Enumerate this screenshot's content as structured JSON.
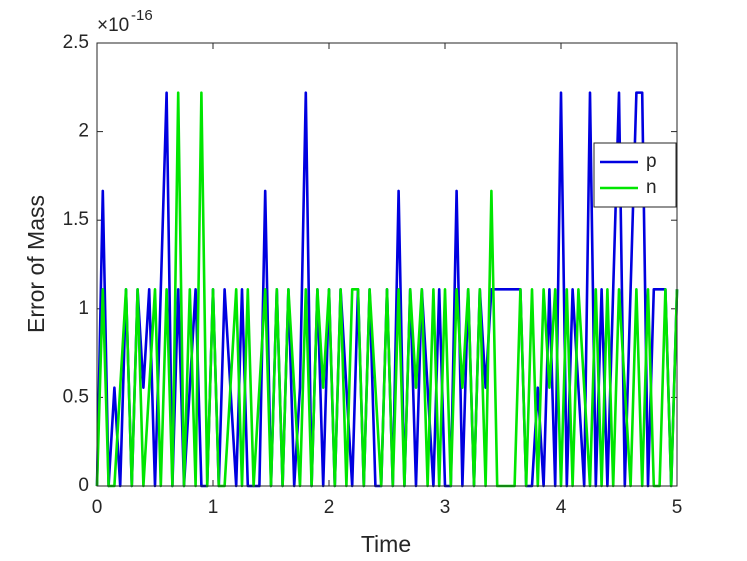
{
  "chart_data": {
    "type": "line",
    "xlabel": "Time",
    "ylabel": "Error of Mass",
    "y_multiplier": "×10",
    "y_multiplier_exponent": "-16",
    "xlim": [
      0,
      5
    ],
    "ylim": [
      0,
      2.5
    ],
    "xticks": [
      0,
      1,
      2,
      3,
      4,
      5
    ],
    "yticks": [
      0,
      0.5,
      1,
      1.5,
      2,
      2.5
    ],
    "grid": false,
    "legend": "northeast",
    "x": [
      0,
      0.05,
      0.1,
      0.15,
      0.2,
      0.25,
      0.3,
      0.35,
      0.4,
      0.45,
      0.5,
      0.55,
      0.6,
      0.65,
      0.7,
      0.75,
      0.8,
      0.85,
      0.9,
      0.95,
      1,
      1.05,
      1.1,
      1.15,
      1.2,
      1.25,
      1.3,
      1.35,
      1.4,
      1.45,
      1.5,
      1.55,
      1.6,
      1.65,
      1.7,
      1.75,
      1.8,
      1.85,
      1.9,
      1.95,
      2,
      2.05,
      2.1,
      2.15,
      2.2,
      2.25,
      2.3,
      2.35,
      2.4,
      2.45,
      2.5,
      2.55,
      2.6,
      2.65,
      2.7,
      2.75,
      2.8,
      2.85,
      2.9,
      2.95,
      3,
      3.05,
      3.1,
      3.15,
      3.2,
      3.25,
      3.3,
      3.35,
      3.4,
      3.45,
      3.5,
      3.55,
      3.6,
      3.65,
      3.7,
      3.75,
      3.8,
      3.85,
      3.9,
      3.95,
      4,
      4.05,
      4.1,
      4.15,
      4.2,
      4.25,
      4.3,
      4.35,
      4.4,
      4.45,
      4.5,
      4.55,
      4.6,
      4.65,
      4.7,
      4.75,
      4.8,
      4.85,
      4.9,
      4.95,
      5
    ],
    "series": [
      {
        "name": "p",
        "color": "#0000e0",
        "values": [
          0,
          1.665,
          0,
          0.555,
          0,
          1.11,
          0,
          1.11,
          0.555,
          1.11,
          0,
          1.11,
          2.22,
          0,
          1.11,
          0,
          0.555,
          1.11,
          0,
          0,
          1.11,
          0,
          1.11,
          0.555,
          0,
          1.11,
          0,
          0,
          0,
          1.665,
          0,
          1.11,
          0,
          1.11,
          0,
          0.555,
          2.22,
          0,
          1.11,
          0,
          1.11,
          0,
          1.11,
          0.555,
          0,
          1.11,
          0,
          1.11,
          0,
          0,
          1.11,
          0,
          1.665,
          0,
          1.11,
          0,
          1.11,
          0.555,
          0,
          1.11,
          0,
          0,
          1.665,
          0,
          1.11,
          0,
          1.11,
          0.555,
          1.11,
          1.11,
          1.11,
          1.11,
          1.11,
          1.11,
          0,
          0,
          0.555,
          0,
          1.11,
          0,
          2.22,
          0,
          1.11,
          0.555,
          0,
          2.22,
          0,
          1.11,
          0,
          1.11,
          2.22,
          0,
          1.11,
          2.22,
          2.22,
          0,
          1.11,
          1.11,
          1.11,
          0,
          1.11
        ]
      },
      {
        "name": "n",
        "color": "#00e600",
        "values": [
          0,
          1.11,
          0,
          0,
          0.555,
          1.11,
          0,
          1.11,
          0,
          0.555,
          1.11,
          0,
          1.11,
          0,
          2.22,
          0,
          1.11,
          0,
          2.22,
          0,
          1.11,
          0,
          0,
          0.555,
          1.11,
          0,
          1.11,
          0,
          0.555,
          1.11,
          0,
          1.11,
          0,
          1.11,
          0.555,
          0,
          1.11,
          0,
          1.11,
          0.555,
          1.11,
          0,
          1.11,
          0,
          1.11,
          1.11,
          0,
          1.11,
          0.555,
          0,
          1.11,
          0,
          1.11,
          0,
          1.11,
          0.555,
          1.11,
          0,
          1.11,
          0,
          1.11,
          0,
          1.11,
          0.555,
          1.11,
          0,
          1.11,
          0,
          1.665,
          0,
          0,
          0,
          0,
          1.11,
          0,
          1.11,
          0,
          1.11,
          0.555,
          1.11,
          0,
          1.11,
          0,
          1.11,
          0.555,
          0,
          1.11,
          0,
          1.11,
          0,
          1.11,
          0.555,
          0,
          1.11,
          0,
          1.11,
          0,
          0,
          1.11,
          0,
          1.11
        ]
      }
    ]
  }
}
